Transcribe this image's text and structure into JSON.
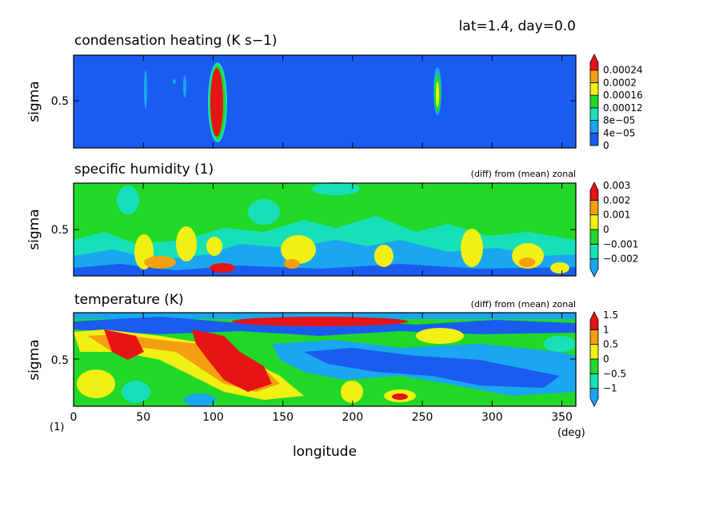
{
  "header": {
    "info": "lat=1.4, day=0.0"
  },
  "colors": {
    "scale": [
      "#1a5cf0",
      "#1aa6f0",
      "#17e0b8",
      "#21d828",
      "#f0f014",
      "#f59e12",
      "#e61414"
    ]
  },
  "chart_data": [
    {
      "type": "heatmap",
      "title": "condensation heating (K s−1)",
      "subtitle": "",
      "ylabel": "sigma",
      "xlim": [
        0,
        360
      ],
      "ylim": [
        0.15,
        0.85
      ],
      "y_ticks": [
        "0.5"
      ],
      "colorbar": [
        "0",
        "4e−05",
        "8e−05",
        "0.00012",
        "0.00016",
        "0.0002",
        "0.00024"
      ],
      "features": [
        {
          "lon": 102,
          "sigma": 0.5,
          "level": 7
        },
        {
          "lon": 52,
          "sigma": 0.6,
          "level": 2
        },
        {
          "lon": 78,
          "sigma": 0.7,
          "level": 2
        },
        {
          "lon": 258,
          "sigma": 0.5,
          "level": 5
        }
      ]
    },
    {
      "type": "heatmap",
      "title": "specific humidity (1)",
      "subtitle": "(diff) from (mean) zonal",
      "ylabel": "sigma",
      "xlim": [
        0,
        360
      ],
      "ylim": [
        0.15,
        0.85
      ],
      "y_ticks": [
        "0.5"
      ],
      "colorbar": [
        "−0.002",
        "−0.001",
        "0",
        "0.001",
        "0.002",
        "0.003"
      ],
      "features": [
        {
          "lon": 50,
          "sigma": 0.25,
          "level": 5
        },
        {
          "lon": 75,
          "sigma": 0.28,
          "level": 5
        },
        {
          "lon": 105,
          "sigma": 0.2,
          "level": 6
        },
        {
          "lon": 160,
          "sigma": 0.3,
          "level": 5
        },
        {
          "lon": 285,
          "sigma": 0.3,
          "level": 5
        },
        {
          "lon": 325,
          "sigma": 0.25,
          "level": 5
        },
        {
          "lon": 350,
          "sigma": 0.25,
          "level": 5
        }
      ]
    },
    {
      "type": "heatmap",
      "title": "temperature (K)",
      "subtitle": "(diff) from (mean) zonal",
      "ylabel": "sigma",
      "xlabel": "longitude",
      "x_unit": "(deg)",
      "x_ticks": [
        0,
        50,
        100,
        150,
        200,
        250,
        300,
        350
      ],
      "corner_label": "(1)",
      "xlim": [
        0,
        360
      ],
      "ylim": [
        0.15,
        0.85
      ],
      "y_ticks": [
        "0.5"
      ],
      "colorbar": [
        "−1",
        "−0.5",
        "0",
        "0.5",
        "1",
        "1.5"
      ],
      "features": [
        {
          "lon": 175,
          "sigma": 0.82,
          "level": 7
        },
        {
          "lon": 120,
          "sigma": 0.4,
          "level": 7
        },
        {
          "lon": 35,
          "sigma": 0.6,
          "level": 7
        },
        {
          "lon": 270,
          "sigma": 0.4,
          "level": 1
        },
        {
          "lon": 200,
          "sigma": 0.65,
          "level": 1
        }
      ]
    }
  ]
}
